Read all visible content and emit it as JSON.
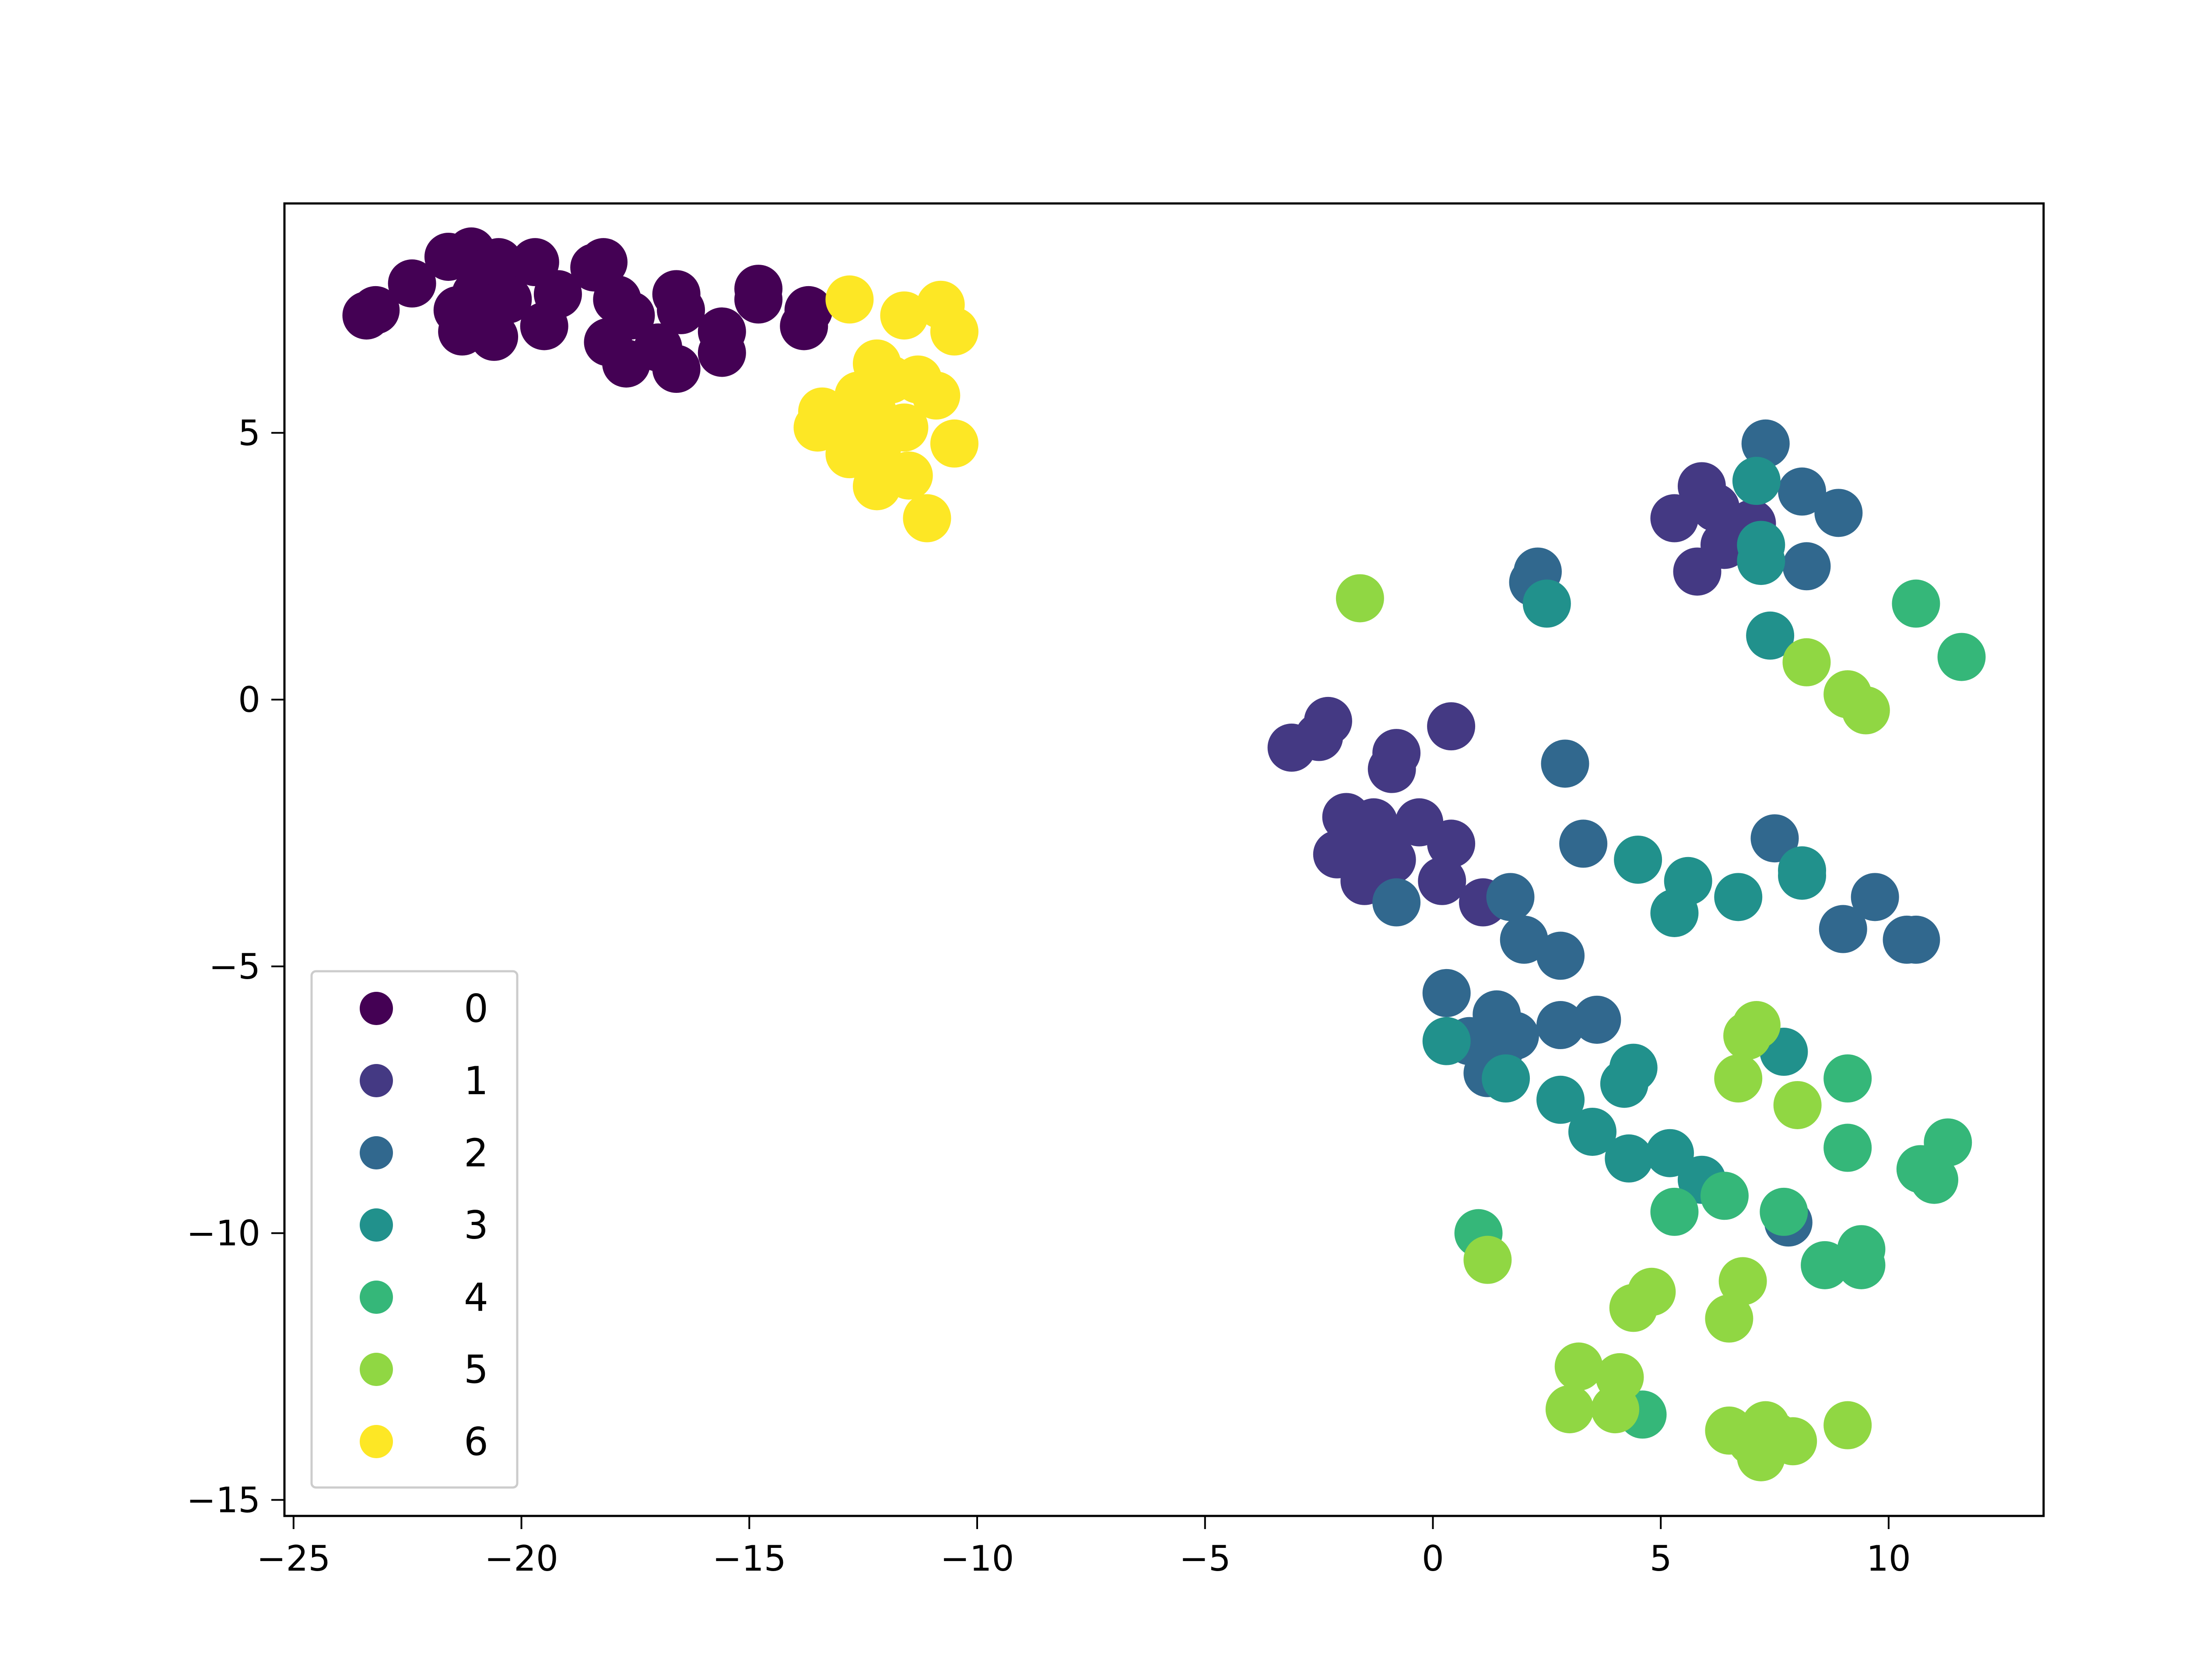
{
  "chart_data": {
    "type": "scatter",
    "title": "",
    "xlabel": "",
    "ylabel": "",
    "xlim": [
      -25.2,
      13.4
    ],
    "ylim": [
      -15.3,
      9.3
    ],
    "grid": false,
    "legend_placement": "lower-left",
    "x_ticks": [
      -25,
      -20,
      -15,
      -10,
      -5,
      0,
      5,
      10
    ],
    "x_tick_labels": [
      "−25",
      "−20",
      "−15",
      "−10",
      "−5",
      "0",
      "5",
      "10"
    ],
    "y_ticks": [
      5,
      0,
      -5,
      -10,
      -15
    ],
    "y_tick_labels": [
      "5",
      "0",
      "−5",
      "−10",
      "−15"
    ],
    "series": [
      {
        "name": "0",
        "color": "#440154",
        "points": [
          [
            -23.4,
            7.2
          ],
          [
            -23.2,
            7.3
          ],
          [
            -22.4,
            7.8
          ],
          [
            -21.6,
            8.3
          ],
          [
            -21.1,
            8.4
          ],
          [
            -20.8,
            8.0
          ],
          [
            -21.0,
            7.6
          ],
          [
            -21.4,
            7.3
          ],
          [
            -20.5,
            8.2
          ],
          [
            -20.3,
            7.5
          ],
          [
            -21.3,
            6.9
          ],
          [
            -20.6,
            6.8
          ],
          [
            -19.7,
            8.2
          ],
          [
            -19.5,
            7.0
          ],
          [
            -19.2,
            7.6
          ],
          [
            -18.4,
            8.1
          ],
          [
            -18.2,
            8.2
          ],
          [
            -17.9,
            7.5
          ],
          [
            -17.6,
            7.2
          ],
          [
            -18.1,
            6.7
          ],
          [
            -17.7,
            6.3
          ],
          [
            -17.0,
            6.6
          ],
          [
            -16.6,
            7.6
          ],
          [
            -16.5,
            7.3
          ],
          [
            -16.6,
            6.2
          ],
          [
            -15.6,
            6.9
          ],
          [
            -15.6,
            6.5
          ],
          [
            -14.8,
            7.7
          ],
          [
            -14.8,
            7.5
          ],
          [
            -13.7,
            7.3
          ],
          [
            -13.8,
            7.0
          ]
        ]
      },
      {
        "name": "1",
        "color": "#443983",
        "points": [
          [
            -3.1,
            -0.9
          ],
          [
            -2.5,
            -0.7
          ],
          [
            -2.3,
            -0.4
          ],
          [
            -1.9,
            -2.2
          ],
          [
            -2.1,
            -2.9
          ],
          [
            -1.7,
            -2.6
          ],
          [
            -1.4,
            -3.1
          ],
          [
            -1.5,
            -3.4
          ],
          [
            -1.3,
            -2.3
          ],
          [
            -1.1,
            -2.7
          ],
          [
            -0.9,
            -3.0
          ],
          [
            -0.9,
            -1.3
          ],
          [
            -0.8,
            -1.0
          ],
          [
            -0.3,
            -2.3
          ],
          [
            0.2,
            -3.4
          ],
          [
            0.4,
            -2.7
          ],
          [
            0.4,
            -0.5
          ],
          [
            1.1,
            -3.8
          ],
          [
            5.3,
            3.4
          ],
          [
            5.9,
            4.0
          ],
          [
            6.2,
            3.6
          ],
          [
            6.4,
            2.9
          ],
          [
            5.8,
            2.4
          ],
          [
            7.0,
            3.3
          ]
        ]
      },
      {
        "name": "2",
        "color": "#31688e",
        "points": [
          [
            2.2,
            2.2
          ],
          [
            2.3,
            2.4
          ],
          [
            2.9,
            -1.2
          ],
          [
            3.3,
            -2.7
          ],
          [
            -0.8,
            -3.8
          ],
          [
            1.7,
            -3.7
          ],
          [
            2.0,
            -4.5
          ],
          [
            2.8,
            -4.8
          ],
          [
            0.3,
            -5.5
          ],
          [
            1.4,
            -5.9
          ],
          [
            1.5,
            -6.5
          ],
          [
            0.8,
            -6.4
          ],
          [
            1.2,
            -7.0
          ],
          [
            2.8,
            -6.1
          ],
          [
            3.6,
            -6.0
          ],
          [
            1.8,
            -6.3
          ],
          [
            7.5,
            -2.6
          ],
          [
            9.0,
            -4.3
          ],
          [
            9.7,
            -3.7
          ],
          [
            10.4,
            -4.5
          ],
          [
            10.6,
            -4.5
          ],
          [
            7.3,
            4.8
          ],
          [
            8.1,
            3.9
          ],
          [
            8.9,
            3.5
          ],
          [
            8.2,
            2.5
          ],
          [
            7.8,
            -9.8
          ]
        ]
      },
      {
        "name": "3",
        "color": "#21918c",
        "points": [
          [
            2.5,
            1.8
          ],
          [
            7.1,
            4.1
          ],
          [
            7.2,
            2.9
          ],
          [
            7.2,
            2.6
          ],
          [
            7.4,
            1.2
          ],
          [
            4.5,
            -3.0
          ],
          [
            5.6,
            -3.4
          ],
          [
            5.3,
            -4.0
          ],
          [
            6.7,
            -3.7
          ],
          [
            8.1,
            -3.3
          ],
          [
            0.3,
            -6.4
          ],
          [
            1.6,
            -7.1
          ],
          [
            2.8,
            -7.5
          ],
          [
            3.5,
            -8.1
          ],
          [
            4.2,
            -7.2
          ],
          [
            4.4,
            -6.9
          ],
          [
            4.3,
            -8.6
          ],
          [
            5.2,
            -8.5
          ],
          [
            5.9,
            -9.0
          ],
          [
            7.7,
            -6.6
          ],
          [
            8.1,
            -3.2
          ]
        ]
      },
      {
        "name": "4",
        "color": "#35b779",
        "points": [
          [
            10.6,
            1.8
          ],
          [
            11.6,
            0.8
          ],
          [
            9.1,
            -7.1
          ],
          [
            9.1,
            -8.4
          ],
          [
            10.7,
            -8.8
          ],
          [
            11.0,
            -9.0
          ],
          [
            11.3,
            -8.3
          ],
          [
            7.7,
            -9.6
          ],
          [
            9.4,
            -10.3
          ],
          [
            9.4,
            -10.6
          ],
          [
            8.6,
            -10.6
          ],
          [
            6.4,
            -9.3
          ],
          [
            5.3,
            -9.6
          ],
          [
            1.0,
            -10.0
          ],
          [
            4.6,
            -13.4
          ]
        ]
      },
      {
        "name": "5",
        "color": "#90d743",
        "points": [
          [
            -1.6,
            1.9
          ],
          [
            8.2,
            0.7
          ],
          [
            9.1,
            0.1
          ],
          [
            9.5,
            -0.2
          ],
          [
            6.9,
            -6.3
          ],
          [
            7.1,
            -6.1
          ],
          [
            6.7,
            -7.1
          ],
          [
            8.0,
            -7.6
          ],
          [
            1.2,
            -10.5
          ],
          [
            4.4,
            -11.4
          ],
          [
            4.8,
            -11.1
          ],
          [
            6.5,
            -11.6
          ],
          [
            6.8,
            -10.9
          ],
          [
            3.2,
            -12.5
          ],
          [
            4.1,
            -12.7
          ],
          [
            3.0,
            -13.3
          ],
          [
            4.0,
            -13.3
          ],
          [
            6.5,
            -13.7
          ],
          [
            7.0,
            -13.9
          ],
          [
            7.2,
            -14.2
          ],
          [
            7.2,
            -13.8
          ],
          [
            7.5,
            -13.8
          ],
          [
            7.9,
            -13.9
          ],
          [
            9.1,
            -13.6
          ],
          [
            7.3,
            -13.6
          ]
        ]
      },
      {
        "name": "6",
        "color": "#fde725",
        "points": [
          [
            -12.8,
            7.5
          ],
          [
            -11.6,
            7.2
          ],
          [
            -10.8,
            7.4
          ],
          [
            -10.5,
            6.9
          ],
          [
            -12.2,
            6.3
          ],
          [
            -11.9,
            6.0
          ],
          [
            -11.3,
            6.0
          ],
          [
            -10.9,
            5.7
          ],
          [
            -12.6,
            5.7
          ],
          [
            -13.4,
            5.4
          ],
          [
            -13.5,
            5.1
          ],
          [
            -12.9,
            5.0
          ],
          [
            -12.3,
            5.4
          ],
          [
            -11.6,
            5.1
          ],
          [
            -12.2,
            4.7
          ],
          [
            -12.8,
            4.6
          ],
          [
            -11.5,
            4.2
          ],
          [
            -12.2,
            4.0
          ],
          [
            -10.5,
            4.8
          ],
          [
            -11.1,
            3.4
          ]
        ]
      }
    ]
  }
}
